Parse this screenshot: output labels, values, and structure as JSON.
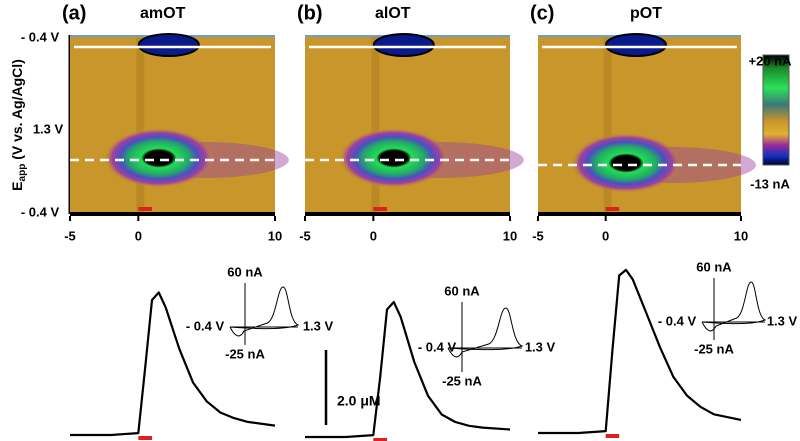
{
  "y_axis": {
    "label_main": "E",
    "label_sub": "app",
    "label_rest": " (V vs. Ag/AgCl)",
    "ticks": [
      "- 0.4 V",
      "1.3 V",
      "- 0.4 V"
    ]
  },
  "colorbar": {
    "max": "+20 nA",
    "min": "-13 nA"
  },
  "scale_bar": {
    "value": 2.0,
    "label": "2.0 μM"
  },
  "chart_data": [
    {
      "type": "fscv",
      "panel": "(a)",
      "title": "amOT",
      "xlim": [
        -5,
        10
      ],
      "xticks": [
        -5,
        0,
        10
      ],
      "stimulus": [
        0,
        1
      ],
      "trace": {
        "x": [
          -5,
          -2,
          0,
          0.5,
          1,
          1.5,
          2,
          3,
          4,
          5,
          6,
          7,
          8,
          10
        ],
        "values": [
          0,
          0,
          0.05,
          1.8,
          3.6,
          3.8,
          3.4,
          2.3,
          1.4,
          0.9,
          0.6,
          0.45,
          0.35,
          0.25
        ]
      },
      "cv_labels": {
        "current_max": "60 nA",
        "potential_min": "- 0.4 V",
        "potential_max": "1.3 V",
        "current_min": "-25 nA"
      }
    },
    {
      "type": "fscv",
      "panel": "(b)",
      "title": "alOT",
      "xlim": [
        -5,
        10
      ],
      "xticks": [
        -5,
        0,
        10
      ],
      "stimulus": [
        0,
        1
      ],
      "trace": {
        "x": [
          -5,
          -2,
          0,
          0.5,
          1,
          1.5,
          2,
          3,
          4,
          5,
          6,
          7,
          8,
          10
        ],
        "values": [
          0,
          0,
          0.05,
          1.6,
          3.4,
          3.6,
          3.2,
          2.0,
          1.1,
          0.6,
          0.4,
          0.3,
          0.25,
          0.2
        ]
      },
      "cv_labels": {
        "current_max": "60 nA",
        "potential_min": "- 0.4 V",
        "potential_max": "1.3 V",
        "current_min": "-25 nA"
      }
    },
    {
      "type": "fscv",
      "panel": "(c)",
      "title": "pOT",
      "xlim": [
        -5,
        10
      ],
      "xticks": [
        -5,
        0,
        10
      ],
      "stimulus": [
        0,
        1
      ],
      "trace": {
        "x": [
          -5,
          -2,
          0,
          0.5,
          1,
          1.5,
          2,
          3,
          4,
          5,
          6,
          7,
          8,
          10
        ],
        "values": [
          0,
          0,
          0.05,
          2.2,
          4.2,
          4.35,
          4.1,
          3.2,
          2.3,
          1.5,
          1.0,
          0.7,
          0.5,
          0.35
        ]
      },
      "cv_labels": {
        "current_max": "60 nA",
        "potential_min": "- 0.4 V",
        "potential_max": "1.3 V",
        "current_min": "-25 nA"
      }
    }
  ]
}
